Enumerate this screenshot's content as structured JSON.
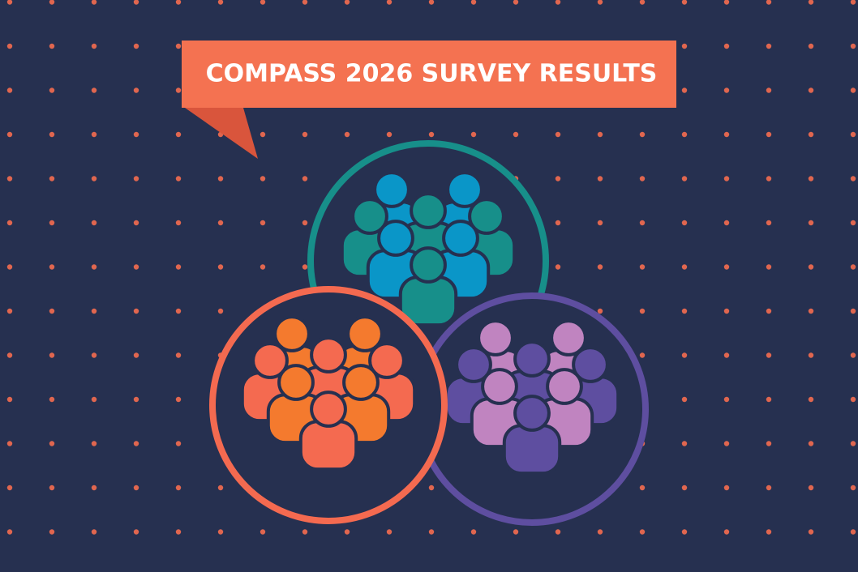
{
  "banner": {
    "title": "COMPASS 2026 SURVEY RESULTS"
  }
}
